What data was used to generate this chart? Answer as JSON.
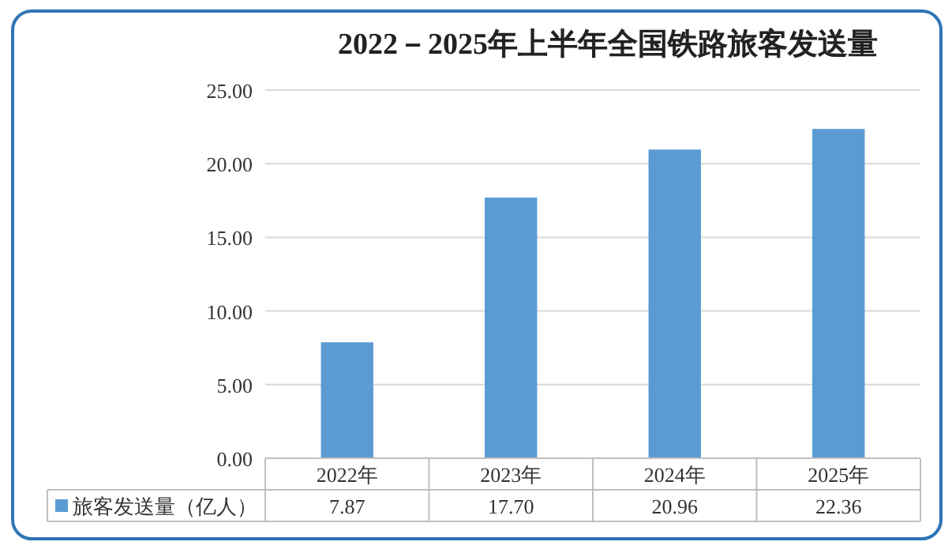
{
  "chart_data": {
    "type": "bar",
    "title": "2022－2025年上半年全国铁路旅客发送量",
    "categories": [
      "2022年",
      "2023年",
      "2024年",
      "2025年"
    ],
    "series": [
      {
        "name": "旅客发送量（亿人）",
        "color": "#5b9bd5",
        "values": [
          7.87,
          17.7,
          20.96,
          22.36
        ],
        "value_labels": [
          "7.87",
          "17.70",
          "20.96",
          "22.36"
        ]
      }
    ],
    "ylim": [
      0,
      25
    ],
    "yticks": [
      {
        "value": 0,
        "label": "0.00"
      },
      {
        "value": 5,
        "label": "5.00"
      },
      {
        "value": 10,
        "label": "10.00"
      },
      {
        "value": 15,
        "label": "15.00"
      },
      {
        "value": 20,
        "label": "20.00"
      },
      {
        "value": 25,
        "label": "25.00"
      }
    ],
    "grid": "y",
    "legend": "bottom left"
  }
}
